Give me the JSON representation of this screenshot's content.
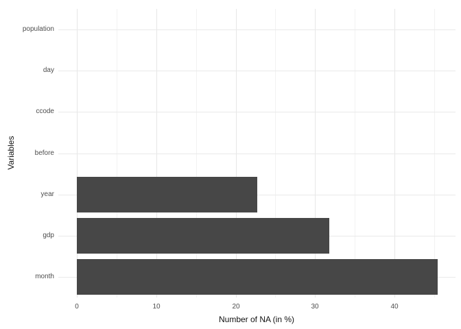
{
  "chart_data": {
    "type": "bar",
    "orientation": "horizontal",
    "title": "",
    "xlabel": "Number of NA (in %)",
    "ylabel": "Variables",
    "categories": [
      "population",
      "day",
      "ccode",
      "before",
      "year",
      "gdp",
      "month"
    ],
    "values": [
      0,
      0,
      0,
      0,
      22.7,
      31.8,
      45.4
    ],
    "x_major_ticks": [
      0,
      10,
      20,
      30,
      40
    ],
    "x_minor_ticks": [
      5,
      15,
      25,
      35,
      45
    ],
    "xlim": [
      -2.3,
      47.7
    ],
    "grid": "on",
    "legend": "none",
    "bar_color": "#474747",
    "major_grid_color": "#e6e6e6",
    "minor_grid_color": "#f2f2f2",
    "tick_label_color": "#4d4d4d",
    "axis_title_color": "#111111",
    "background_color": "#ffffff"
  }
}
